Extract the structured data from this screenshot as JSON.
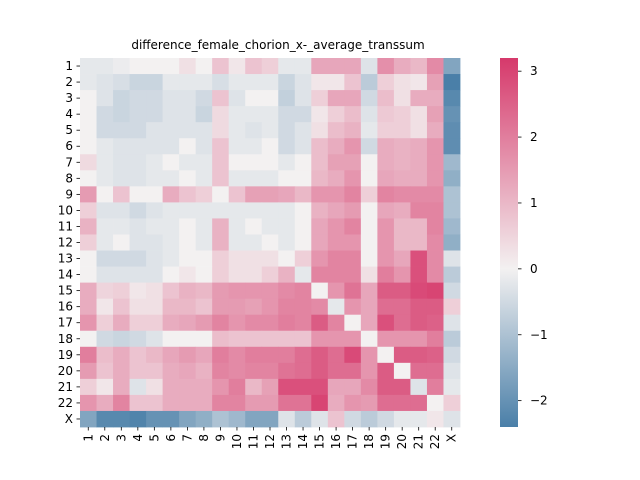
{
  "chart_data": {
    "type": "heatmap",
    "title": "difference_female_chorion_x-_average_transsum",
    "xlabel": "",
    "ylabel": "",
    "row_labels": [
      "1",
      "2",
      "3",
      "4",
      "5",
      "6",
      "7",
      "8",
      "9",
      "10",
      "11",
      "12",
      "13",
      "14",
      "15",
      "16",
      "17",
      "18",
      "19",
      "20",
      "21",
      "22",
      "X"
    ],
    "col_labels": [
      "1",
      "2",
      "3",
      "4",
      "5",
      "6",
      "7",
      "8",
      "9",
      "10",
      "11",
      "12",
      "13",
      "14",
      "15",
      "16",
      "17",
      "18",
      "19",
      "20",
      "21",
      "22",
      "X"
    ],
    "values": [
      [
        -0.2,
        -0.2,
        -0.1,
        0.0,
        0.0,
        0.0,
        0.3,
        0.0,
        0.8,
        0.2,
        0.8,
        0.6,
        -0.2,
        -0.2,
        1.3,
        1.3,
        1.3,
        -0.3,
        1.7,
        1.2,
        1.0,
        1.8,
        -1.6
      ],
      [
        -0.2,
        -0.3,
        -0.4,
        -0.6,
        -0.6,
        -0.2,
        -0.2,
        -0.2,
        -0.4,
        -0.2,
        -0.2,
        -0.2,
        -0.6,
        -0.3,
        0.2,
        0.2,
        0.8,
        -0.8,
        0.6,
        0.3,
        0.2,
        1.4,
        -2.4
      ],
      [
        0.0,
        -0.3,
        -0.6,
        -0.5,
        -0.5,
        -0.3,
        -0.3,
        -0.5,
        0.8,
        -0.3,
        0.0,
        0.0,
        -0.7,
        -0.3,
        0.6,
        1.3,
        1.3,
        -0.5,
        0.9,
        0.3,
        1.2,
        1.2,
        -2.2
      ],
      [
        0.0,
        -0.5,
        -0.6,
        -0.5,
        -0.5,
        -0.3,
        -0.3,
        -0.6,
        0.4,
        -0.2,
        -0.2,
        -0.2,
        -0.5,
        -0.5,
        0.2,
        0.6,
        0.9,
        -0.3,
        0.7,
        0.6,
        0.3,
        1.4,
        -2.0
      ],
      [
        0.0,
        -0.5,
        -0.5,
        -0.5,
        -0.3,
        -0.3,
        -0.3,
        -0.3,
        0.4,
        -0.2,
        -0.3,
        -0.2,
        -0.5,
        -0.3,
        0.3,
        0.9,
        1.1,
        -0.2,
        0.6,
        0.6,
        0.3,
        1.2,
        -2.1
      ],
      [
        0.0,
        -0.2,
        -0.3,
        -0.3,
        -0.3,
        -0.3,
        0.0,
        -0.3,
        0.8,
        -0.2,
        -0.2,
        0.0,
        -0.5,
        -0.3,
        0.9,
        1.2,
        1.6,
        -0.5,
        1.2,
        1.1,
        1.2,
        1.6,
        -2.1
      ],
      [
        0.4,
        -0.2,
        -0.3,
        -0.3,
        -0.2,
        0.0,
        -0.2,
        -0.2,
        0.8,
        0.0,
        0.0,
        0.0,
        -0.2,
        0.0,
        0.9,
        1.4,
        1.4,
        0.0,
        1.2,
        1.1,
        1.2,
        1.6,
        -1.2
      ],
      [
        0.0,
        -0.2,
        -0.3,
        -0.3,
        -0.2,
        -0.2,
        0.0,
        -0.2,
        0.8,
        -0.2,
        -0.2,
        -0.2,
        0.0,
        0.0,
        1.0,
        1.2,
        1.6,
        0.0,
        1.3,
        1.2,
        1.2,
        1.6,
        -1.4
      ],
      [
        1.5,
        0.0,
        0.8,
        0.0,
        0.0,
        1.2,
        0.8,
        0.6,
        0.0,
        0.8,
        1.4,
        1.4,
        1.3,
        1.0,
        1.6,
        1.6,
        1.9,
        0.6,
        1.9,
        1.8,
        1.8,
        1.8,
        -1.0
      ],
      [
        0.6,
        -0.3,
        -0.3,
        -0.5,
        -0.3,
        -0.2,
        -0.2,
        -0.2,
        -0.2,
        -0.2,
        -0.2,
        -0.2,
        -0.2,
        0.0,
        1.1,
        1.3,
        1.5,
        0.0,
        1.3,
        1.2,
        1.9,
        1.9,
        -1.0
      ],
      [
        1.1,
        -0.2,
        -0.2,
        -0.3,
        -0.2,
        -0.2,
        0.0,
        -0.2,
        1.1,
        -0.2,
        0.0,
        -0.2,
        -0.2,
        0.0,
        1.3,
        1.6,
        1.9,
        0.0,
        1.6,
        1.0,
        1.0,
        1.9,
        -1.2
      ],
      [
        0.6,
        -0.2,
        0.0,
        -0.3,
        -0.3,
        -0.2,
        0.0,
        -0.2,
        1.1,
        -0.2,
        -0.2,
        0.0,
        -0.2,
        0.0,
        1.3,
        1.6,
        1.6,
        0.0,
        1.6,
        1.0,
        1.0,
        1.8,
        -1.4
      ],
      [
        0.0,
        -0.5,
        -0.5,
        -0.5,
        -0.3,
        -0.2,
        0.0,
        0.0,
        0.6,
        0.3,
        0.3,
        0.3,
        0.0,
        0.6,
        1.6,
        1.9,
        1.9,
        0.0,
        1.6,
        1.3,
        2.8,
        1.8,
        -0.3
      ],
      [
        0.0,
        -0.3,
        -0.3,
        -0.3,
        -0.3,
        0.0,
        0.2,
        0.0,
        0.6,
        0.3,
        0.3,
        0.6,
        1.1,
        -0.2,
        1.9,
        1.9,
        1.9,
        0.3,
        2.0,
        1.6,
        2.8,
        1.8,
        -0.8
      ],
      [
        1.2,
        0.5,
        0.6,
        0.2,
        0.3,
        0.8,
        1.1,
        1.0,
        1.5,
        1.6,
        1.6,
        1.6,
        1.8,
        1.9,
        0.0,
        1.6,
        2.2,
        1.3,
        2.6,
        2.6,
        2.9,
        3.0,
        -0.5
      ],
      [
        1.2,
        0.2,
        0.8,
        0.3,
        0.3,
        1.0,
        1.0,
        0.8,
        1.5,
        1.5,
        1.4,
        1.6,
        1.9,
        1.9,
        1.8,
        -0.2,
        1.6,
        1.3,
        2.3,
        2.3,
        2.6,
        2.6,
        0.6
      ],
      [
        1.6,
        0.6,
        1.2,
        0.6,
        0.6,
        1.2,
        1.3,
        1.5,
        1.9,
        1.6,
        1.8,
        1.8,
        2.0,
        1.9,
        2.6,
        1.9,
        0.0,
        1.3,
        2.8,
        2.3,
        2.6,
        2.5,
        -0.3
      ],
      [
        0.0,
        -0.5,
        -0.6,
        -0.5,
        -0.3,
        0.0,
        0.0,
        0.0,
        0.9,
        0.8,
        0.8,
        0.8,
        0.8,
        0.8,
        1.6,
        1.6,
        1.6,
        0.0,
        1.6,
        1.6,
        1.6,
        2.0,
        -0.8
      ],
      [
        2.0,
        0.9,
        1.2,
        0.8,
        1.0,
        1.3,
        1.5,
        1.3,
        2.0,
        1.8,
        2.0,
        2.0,
        2.0,
        2.3,
        2.6,
        2.3,
        2.9,
        1.6,
        0.0,
        2.6,
        2.6,
        2.5,
        -0.5
      ],
      [
        1.5,
        0.8,
        1.2,
        0.8,
        0.8,
        1.2,
        1.3,
        1.1,
        1.9,
        1.8,
        1.9,
        1.9,
        2.2,
        2.3,
        2.6,
        2.3,
        2.3,
        1.6,
        2.6,
        0.0,
        2.3,
        2.3,
        -0.3
      ],
      [
        0.6,
        0.2,
        1.2,
        -0.3,
        0.3,
        1.2,
        1.2,
        1.2,
        1.6,
        2.0,
        1.0,
        1.4,
        2.8,
        2.8,
        2.8,
        1.3,
        1.3,
        1.8,
        2.6,
        2.6,
        -0.3,
        2.0,
        -0.2
      ],
      [
        1.6,
        1.2,
        1.9,
        0.8,
        0.8,
        1.2,
        1.2,
        1.2,
        1.9,
        1.9,
        1.5,
        1.5,
        2.2,
        2.2,
        3.0,
        1.2,
        1.6,
        1.5,
        2.3,
        2.3,
        2.3,
        0.0,
        0.6
      ],
      [
        -1.6,
        -2.2,
        -2.2,
        -2.3,
        -2.0,
        -2.0,
        -1.6,
        -1.4,
        -1.0,
        -1.2,
        -1.6,
        -1.6,
        -0.3,
        -0.8,
        -0.3,
        0.8,
        -0.5,
        -0.8,
        -0.5,
        -0.2,
        -0.2,
        0.2,
        -0.3
      ]
    ],
    "vmin": -2.4,
    "vmax": 3.2,
    "colorbar_ticks": [
      -2,
      -1,
      0,
      1,
      2,
      3
    ],
    "colormap": {
      "low": "#4a7fa8",
      "mid": "#f3f1f1",
      "high": "#d6396b"
    },
    "grid": false,
    "legend": "colorbar-right"
  }
}
